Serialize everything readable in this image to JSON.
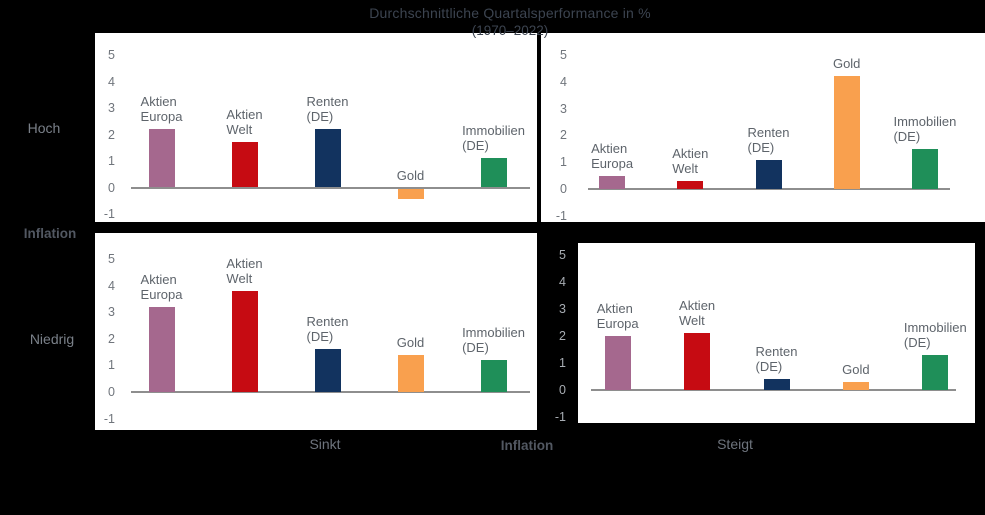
{
  "title": {
    "line1": "Durchschnittliche Quartalsperformance in %",
    "line2": "(1970–2022)"
  },
  "row_axis": {
    "title": "Inflation",
    "top": "Hoch",
    "bottom": "Niedrig"
  },
  "col_axis": {
    "title": "Inflation",
    "left": "Sinkt",
    "right": "Steigt"
  },
  "chart_data": {
    "type": "bar",
    "title": "Durchschnittliche Quartalsperformance in % (1970–2022)",
    "categories": [
      "Aktien Europa",
      "Aktien Welt",
      "Renten (DE)",
      "Gold",
      "Immobilien (DE)"
    ],
    "category_display": [
      "Aktien\nEuropa",
      "Aktien\nWelt",
      "Renten\n(DE)",
      "Gold",
      "Immobilien\n(DE)"
    ],
    "colors": [
      "#a5688e",
      "#c60b12",
      "#12335f",
      "#f9a04e",
      "#1f8f59"
    ],
    "ylim": [
      -1,
      5
    ],
    "yticks": [
      5,
      4,
      3,
      2,
      1,
      0,
      -1
    ],
    "grid": false,
    "legend": "none",
    "facets": [
      {
        "row": "Hoch",
        "col": "Sinkt",
        "values": [
          2.2,
          1.7,
          2.2,
          -0.4,
          1.1
        ]
      },
      {
        "row": "Hoch",
        "col": "Steigt",
        "values": [
          0.5,
          0.3,
          1.1,
          4.2,
          1.5
        ]
      },
      {
        "row": "Niedrig",
        "col": "Sinkt",
        "values": [
          3.2,
          3.8,
          1.6,
          1.4,
          1.2
        ]
      },
      {
        "row": "Niedrig",
        "col": "Steigt",
        "values": [
          2.0,
          2.1,
          0.4,
          0.3,
          1.3
        ]
      }
    ]
  }
}
